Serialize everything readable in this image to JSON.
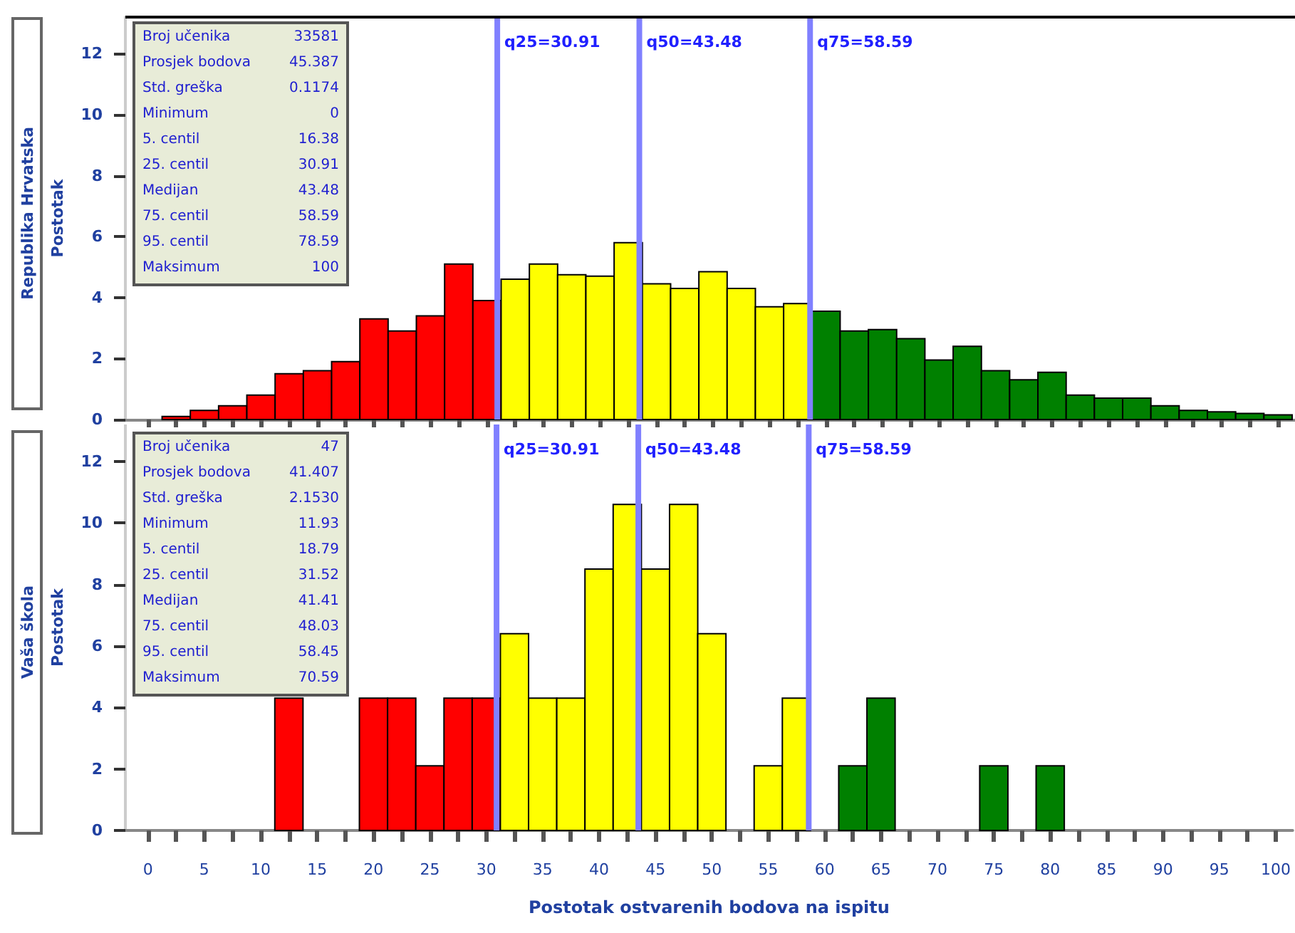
{
  "chart_data": [
    {
      "type": "histogram",
      "title": "Republika Hrvatska",
      "ylabel": "Postotak",
      "tick_labels": "y",
      "grid": false,
      "bins": [
        -1.25,
        1.25,
        3.75,
        6.25,
        8.75,
        11.25,
        13.75,
        16.25,
        18.75,
        21.25,
        23.75,
        26.25,
        28.75,
        31.25,
        33.75,
        36.25,
        38.75,
        41.25,
        43.75,
        46.25,
        48.75,
        51.25,
        53.75,
        56.25,
        58.75,
        61.25,
        63.75,
        66.25,
        68.75,
        71.25,
        73.75,
        76.25,
        78.75,
        81.25,
        83.75,
        86.25,
        88.75,
        91.25,
        93.75,
        96.25,
        98.75,
        101.25
      ],
      "values": [
        0,
        0.1,
        0.3,
        0.45,
        0.8,
        1.5,
        1.6,
        1.9,
        3.3,
        2.9,
        3.4,
        5.1,
        3.9,
        4.6,
        5.1,
        4.75,
        4.7,
        5.8,
        4.45,
        4.3,
        4.85,
        4.3,
        3.7,
        3.8,
        3.55,
        2.9,
        2.95,
        2.65,
        1.95,
        2.4,
        1.6,
        1.3,
        1.55,
        0.8,
        0.7,
        0.7,
        0.45,
        0.3,
        0.25,
        0.2,
        0.15
      ],
      "colors": [
        "#ff0000",
        "#ff0000",
        "#ff0000",
        "#ff0000",
        "#ff0000",
        "#ff0000",
        "#ff0000",
        "#ff0000",
        "#ff0000",
        "#ff0000",
        "#ff0000",
        "#ff0000",
        "#ff0000",
        "#ffff00",
        "#ffff00",
        "#ffff00",
        "#ffff00",
        "#ffff00",
        "#ffff00",
        "#ffff00",
        "#ffff00",
        "#ffff00",
        "#ffff00",
        "#ffff00",
        "#008000",
        "#008000",
        "#008000",
        "#008000",
        "#008000",
        "#008000",
        "#008000",
        "#008000",
        "#008000",
        "#008000",
        "#008000",
        "#008000",
        "#008000",
        "#008000",
        "#008000",
        "#008000",
        "#008000"
      ],
      "xlim": [
        -2,
        101.5
      ],
      "xticks": [
        0,
        {
          "value": 2.5,
          "label": null
        },
        5,
        {
          "value": 7.5,
          "label": null
        },
        10,
        {
          "value": 12.5,
          "label": null
        },
        15,
        {
          "value": 17.5,
          "label": null
        },
        20,
        {
          "value": 22.5,
          "label": null
        },
        25,
        {
          "value": 27.5,
          "label": null
        },
        30,
        {
          "value": 32.5,
          "label": null
        },
        35,
        {
          "value": 37.5,
          "label": null
        },
        40,
        {
          "value": 42.5,
          "label": null
        },
        45,
        {
          "value": 47.5,
          "label": null
        },
        50,
        {
          "value": 52.5,
          "label": null
        },
        55,
        {
          "value": 57.5,
          "label": null
        },
        60,
        {
          "value": 62.5,
          "label": null
        },
        65,
        {
          "value": 67.5,
          "label": null
        },
        70,
        {
          "value": 72.5,
          "label": null
        },
        75,
        {
          "value": 77.5,
          "label": null
        },
        80,
        {
          "value": 82.5,
          "label": null
        },
        85,
        {
          "value": 87.5,
          "label": null
        },
        90,
        {
          "value": 92.5,
          "label": null
        },
        95,
        {
          "value": 97.5,
          "label": null
        },
        100
      ],
      "ylim": [
        0,
        13.2
      ],
      "yticks": [
        0,
        2,
        4,
        6,
        8,
        10,
        12
      ],
      "ref_lines": [
        {
          "axis": "x",
          "value": 30.91,
          "label": "q25=30.91",
          "color": "#8080ff"
        },
        {
          "axis": "x",
          "value": 43.48,
          "label": "q50=43.48",
          "color": "#8080ff"
        },
        {
          "axis": "x",
          "value": 58.59,
          "label": "q75=58.59",
          "color": "#8080ff"
        }
      ],
      "annotations": [
        "Broj učenika 33581",
        "Prosjek bodova 45.387",
        "Std. greška 0.1174",
        "Minimum 0",
        "5. centil 16.38",
        "25. centil 30.91",
        "Medijan 43.48",
        "75. centil 58.59",
        "95. centil 78.59",
        "Maksimum 100"
      ]
    },
    {
      "type": "histogram",
      "title": "Vaša škola",
      "ylabel": "Postotak",
      "xlabel": "Postotak ostvarenih bodova na ispitu",
      "grid": false,
      "bins": [
        -1.25,
        1.25,
        3.75,
        6.25,
        8.75,
        11.25,
        13.75,
        16.25,
        18.75,
        21.25,
        23.75,
        26.25,
        28.75,
        31.25,
        33.75,
        36.25,
        38.75,
        41.25,
        43.75,
        46.25,
        48.75,
        51.25,
        53.75,
        56.25,
        58.75,
        61.25,
        63.75,
        66.25,
        68.75,
        71.25,
        73.75,
        76.25,
        78.75,
        81.25,
        83.75,
        86.25,
        88.75,
        91.25,
        93.75,
        96.25,
        98.75,
        101.25
      ],
      "values": [
        0,
        0,
        0,
        0,
        0,
        4.3,
        0,
        0,
        4.3,
        4.3,
        2.1,
        4.3,
        4.3,
        6.4,
        4.3,
        4.3,
        8.5,
        10.6,
        8.5,
        10.6,
        6.4,
        0,
        2.1,
        4.3,
        0,
        2.1,
        4.3,
        0,
        0,
        0,
        2.1,
        0,
        2.1,
        0,
        0,
        0,
        0,
        0,
        0,
        0,
        0
      ],
      "colors": [
        "#ff0000",
        "#ff0000",
        "#ff0000",
        "#ff0000",
        "#ff0000",
        "#ff0000",
        "#ff0000",
        "#ff0000",
        "#ff0000",
        "#ff0000",
        "#ff0000",
        "#ff0000",
        "#ff0000",
        "#ffff00",
        "#ffff00",
        "#ffff00",
        "#ffff00",
        "#ffff00",
        "#ffff00",
        "#ffff00",
        "#ffff00",
        "#ffff00",
        "#ffff00",
        "#ffff00",
        "#008000",
        "#008000",
        "#008000",
        "#008000",
        "#008000",
        "#008000",
        "#008000",
        "#008000",
        "#008000",
        "#008000",
        "#008000",
        "#008000",
        "#008000",
        "#008000",
        "#008000",
        "#008000",
        "#008000"
      ],
      "xlim": [
        -2,
        101.5
      ],
      "xticks": [
        0,
        {
          "value": 2.5,
          "label": null
        },
        5,
        {
          "value": 7.5,
          "label": null
        },
        10,
        {
          "value": 12.5,
          "label": null
        },
        15,
        {
          "value": 17.5,
          "label": null
        },
        20,
        {
          "value": 22.5,
          "label": null
        },
        25,
        {
          "value": 27.5,
          "label": null
        },
        30,
        {
          "value": 32.5,
          "label": null
        },
        35,
        {
          "value": 37.5,
          "label": null
        },
        40,
        {
          "value": 42.5,
          "label": null
        },
        45,
        {
          "value": 47.5,
          "label": null
        },
        50,
        {
          "value": 52.5,
          "label": null
        },
        55,
        {
          "value": 57.5,
          "label": null
        },
        60,
        {
          "value": 62.5,
          "label": null
        },
        65,
        {
          "value": 67.5,
          "label": null
        },
        70,
        {
          "value": 72.5,
          "label": null
        },
        75,
        {
          "value": 77.5,
          "label": null
        },
        80,
        {
          "value": 82.5,
          "label": null
        },
        85,
        {
          "value": 87.5,
          "label": null
        },
        90,
        {
          "value": 92.5,
          "label": null
        },
        95,
        {
          "value": 97.5,
          "label": null
        },
        100
      ],
      "ylim": [
        0,
        13.2
      ],
      "yticks": [
        0,
        2,
        4,
        6,
        8,
        10,
        12
      ],
      "ref_lines": [
        {
          "axis": "x",
          "value": 30.91,
          "label": "q25=30.91",
          "color": "#8080ff"
        },
        {
          "axis": "x",
          "value": 43.48,
          "label": "q50=43.48",
          "color": "#8080ff"
        },
        {
          "axis": "x",
          "value": 58.59,
          "label": "q75=58.59",
          "color": "#8080ff"
        }
      ],
      "annotations": [
        "Broj učenika 47",
        "Prosjek bodova 41.407",
        "Std. greška 2.1530",
        "Minimum 11.93",
        "5. centil 18.79",
        "25. centil 31.52",
        "Medijan 41.41",
        "75. centil 48.03",
        "95. centil 58.45",
        "Maksimum 70.59"
      ]
    }
  ]
}
